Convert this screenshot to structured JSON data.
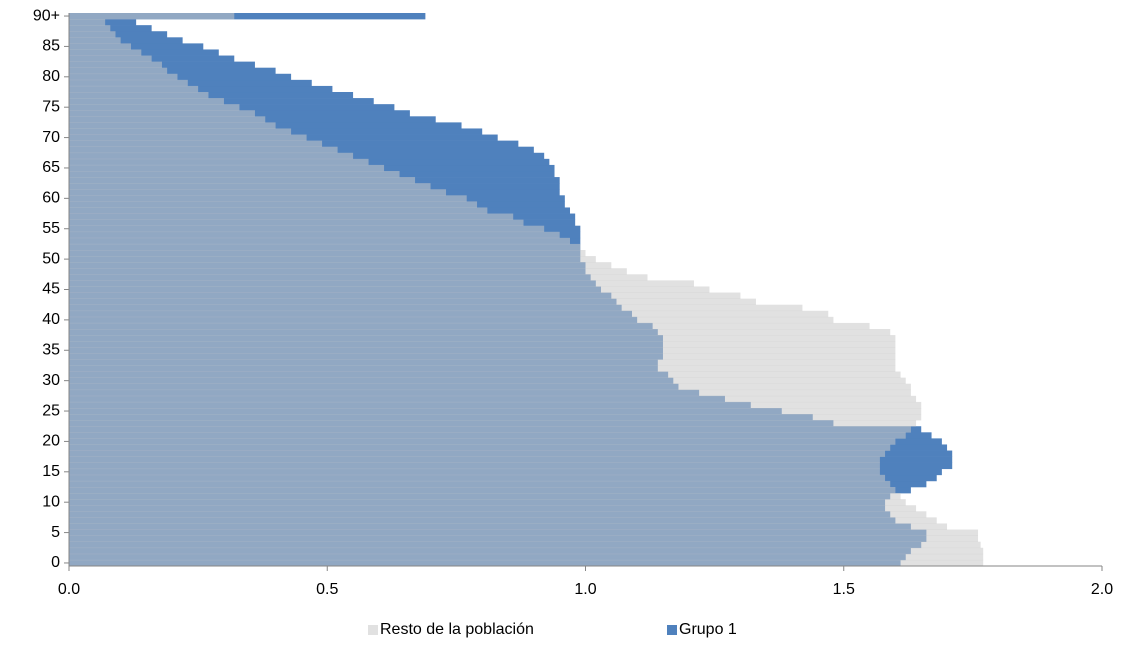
{
  "chart_data": {
    "type": "barh-overlap",
    "categories": [
      "0",
      null,
      null,
      null,
      null,
      "5",
      null,
      null,
      null,
      null,
      "10",
      null,
      null,
      null,
      null,
      "15",
      null,
      null,
      null,
      null,
      "20",
      null,
      null,
      null,
      null,
      "25",
      null,
      null,
      null,
      null,
      "30",
      null,
      null,
      null,
      null,
      "35",
      null,
      null,
      null,
      null,
      "40",
      null,
      null,
      null,
      null,
      "45",
      null,
      null,
      null,
      null,
      "50",
      null,
      null,
      null,
      null,
      "55",
      null,
      null,
      null,
      null,
      "60",
      null,
      null,
      null,
      null,
      "65",
      null,
      null,
      null,
      null,
      "70",
      null,
      null,
      null,
      null,
      "75",
      null,
      null,
      null,
      null,
      "80",
      null,
      null,
      null,
      null,
      "85",
      null,
      null,
      null,
      null,
      "90+"
    ],
    "series": [
      {
        "name": "Grupo 1",
        "color": "#4f81bd",
        "values": [
          1.61,
          1.62,
          1.63,
          1.65,
          1.66,
          1.66,
          1.63,
          1.6,
          1.59,
          1.58,
          1.58,
          1.59,
          1.63,
          1.66,
          1.68,
          1.69,
          1.71,
          1.71,
          1.71,
          1.7,
          1.69,
          1.67,
          1.65,
          1.48,
          1.44,
          1.38,
          1.32,
          1.27,
          1.22,
          1.18,
          1.17,
          1.16,
          1.14,
          1.14,
          1.15,
          1.15,
          1.15,
          1.15,
          1.14,
          1.13,
          1.1,
          1.09,
          1.07,
          1.06,
          1.05,
          1.03,
          1.02,
          1.01,
          1.0,
          1.0,
          0.99,
          0.99,
          0.99,
          0.99,
          0.99,
          0.99,
          0.98,
          0.98,
          0.97,
          0.96,
          0.96,
          0.95,
          0.95,
          0.95,
          0.94,
          0.94,
          0.93,
          0.92,
          0.9,
          0.87,
          0.83,
          0.8,
          0.76,
          0.71,
          0.66,
          0.63,
          0.59,
          0.55,
          0.51,
          0.47,
          0.43,
          0.4,
          0.36,
          0.32,
          0.29,
          0.26,
          0.22,
          0.19,
          0.16,
          0.13,
          0.69
        ]
      },
      {
        "name": "Resto de la población",
        "color": "#c8c8c8",
        "values": [
          1.77,
          1.77,
          1.77,
          1.765,
          1.76,
          1.76,
          1.7,
          1.68,
          1.66,
          1.64,
          1.62,
          1.61,
          1.6,
          1.59,
          1.58,
          1.57,
          1.57,
          1.57,
          1.58,
          1.59,
          1.6,
          1.62,
          1.63,
          1.64,
          1.65,
          1.65,
          1.65,
          1.64,
          1.63,
          1.63,
          1.62,
          1.61,
          1.6,
          1.6,
          1.6,
          1.6,
          1.6,
          1.6,
          1.59,
          1.55,
          1.48,
          1.47,
          1.42,
          1.33,
          1.3,
          1.24,
          1.21,
          1.12,
          1.08,
          1.05,
          1.02,
          1.0,
          0.99,
          0.97,
          0.95,
          0.92,
          0.88,
          0.86,
          0.81,
          0.79,
          0.77,
          0.73,
          0.7,
          0.67,
          0.64,
          0.61,
          0.58,
          0.55,
          0.52,
          0.49,
          0.46,
          0.43,
          0.4,
          0.38,
          0.36,
          0.33,
          0.3,
          0.27,
          0.25,
          0.23,
          0.21,
          0.19,
          0.18,
          0.16,
          0.14,
          0.12,
          0.1,
          0.09,
          0.08,
          0.07,
          0.32
        ]
      }
    ],
    "xlim": [
      0,
      2
    ],
    "xticks": [
      {
        "value": 0,
        "label": "0.0"
      },
      {
        "value": 0.5,
        "label": "0.5"
      },
      {
        "value": 1,
        "label": "1.0"
      },
      {
        "value": 1.5,
        "label": "1.5"
      },
      {
        "value": 2,
        "label": "2.0"
      }
    ],
    "legend": "bottom"
  }
}
